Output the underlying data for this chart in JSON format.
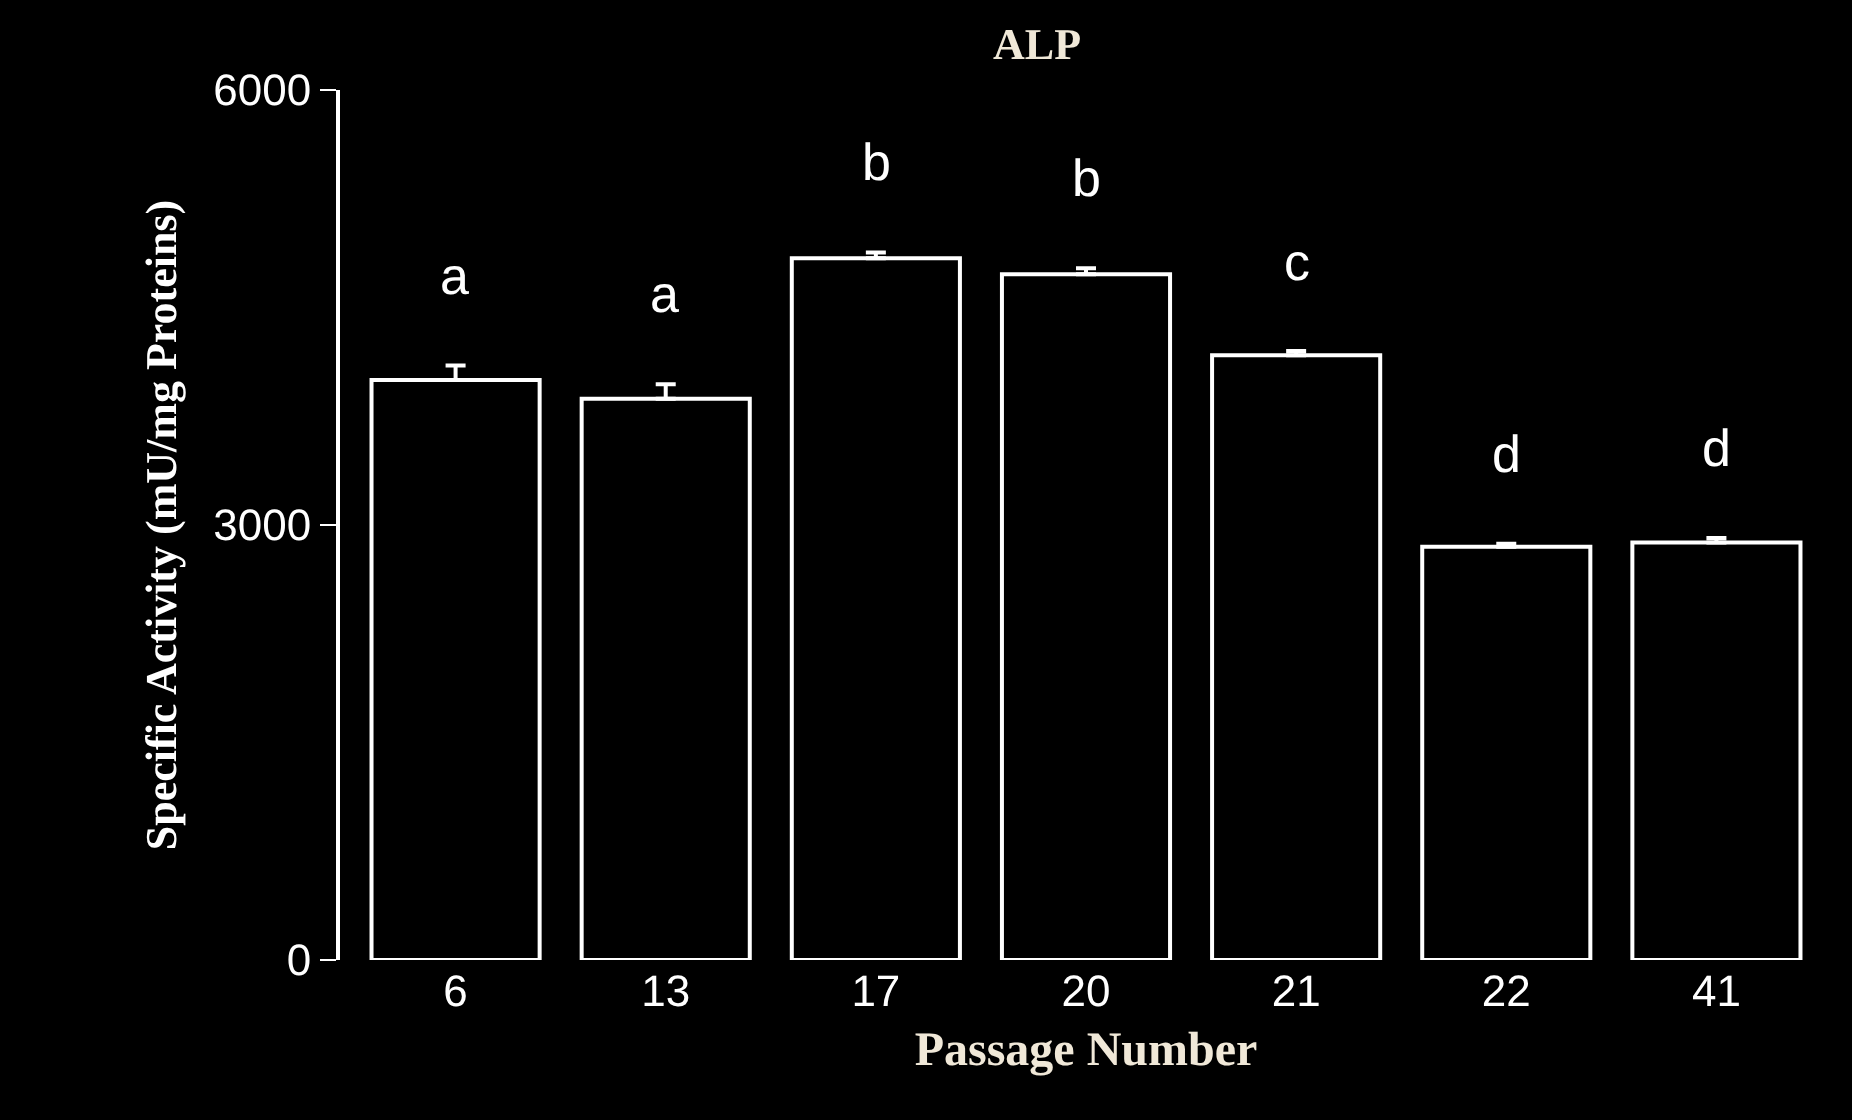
{
  "chart_data": {
    "type": "bar",
    "title": "ALP",
    "xlabel": "Passage Number",
    "ylabel": "Specific Activity (mU/mg Proteins)",
    "categories": [
      "6",
      "13",
      "17",
      "20",
      "21",
      "22",
      "41"
    ],
    "values": [
      4000,
      3870,
      4840,
      4730,
      4170,
      2850,
      2880
    ],
    "errors": [
      [
        4000,
        4100
      ],
      [
        3870,
        3970
      ],
      [
        4840,
        4880
      ],
      [
        4730,
        4770
      ],
      [
        4170,
        4200
      ],
      [
        2850,
        2870
      ],
      [
        2880,
        2910
      ]
    ],
    "color": "#000000",
    "ylim": [
      0,
      6000
    ],
    "yticks": [
      0,
      3000,
      6000
    ],
    "grid": false,
    "annotations": [
      "a",
      "a",
      "b",
      "b",
      "c",
      "d",
      "d"
    ]
  }
}
